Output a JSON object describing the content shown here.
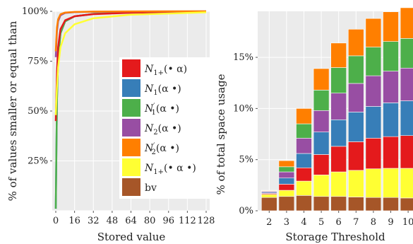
{
  "chart_data": [
    {
      "type": "line",
      "xlabel": "Stored value",
      "ylabel": "% of values smaller or equal than",
      "x_ticks": [
        "0",
        "16",
        "32",
        "48",
        "64",
        "80",
        "96",
        "112",
        "128"
      ],
      "y_ticks": [
        "25%",
        "50%",
        "75%",
        "100%"
      ],
      "xlim": [
        -3,
        131
      ],
      "ylim": [
        0,
        100
      ],
      "grid": true,
      "legend_position": "right",
      "series": [
        {
          "name": "N1+(• α)",
          "color": "#e41a1c",
          "x": [
            0,
            1,
            2,
            4,
            8,
            16,
            32,
            64,
            128
          ],
          "y": [
            45,
            70,
            82,
            91,
            95.5,
            97.5,
            98.6,
            99.3,
            99.8
          ]
        },
        {
          "name": "N1(α •)",
          "color": "#377eb8",
          "x": [
            0,
            1,
            2,
            4,
            8,
            16,
            32,
            64,
            128
          ],
          "y": [
            1,
            55,
            76,
            89,
            95,
            97.5,
            98.7,
            99.4,
            99.8
          ]
        },
        {
          "name": "N'1(α •)",
          "color": "#4daf4a",
          "x": [
            0,
            1,
            2,
            4,
            8,
            16,
            32,
            64,
            128
          ],
          "y": [
            1,
            55,
            76,
            89,
            95,
            97.5,
            98.7,
            99.4,
            99.8
          ]
        },
        {
          "name": "N2(α •)",
          "color": "#984ea3",
          "x": [
            0,
            1,
            2,
            4,
            8,
            16,
            32,
            64,
            128
          ],
          "y": [
            77,
            90,
            95,
            98,
            99.2,
            99.6,
            99.8,
            99.9,
            100
          ]
        },
        {
          "name": "N'2(α •)",
          "color": "#ff7f00",
          "x": [
            0,
            1,
            2,
            4,
            8,
            16,
            32,
            64,
            128
          ],
          "y": [
            80,
            92,
            96,
            98.5,
            99.4,
            99.7,
            99.85,
            99.95,
            100
          ]
        },
        {
          "name": "N1+(• α •)",
          "color": "#ffff33",
          "x": [
            0,
            1,
            2,
            4,
            8,
            16,
            32,
            64,
            128
          ],
          "y": [
            48,
            62,
            72,
            82,
            89,
            93.5,
            96.5,
            98.3,
            99.5
          ]
        },
        {
          "name": "bv",
          "color": "#a65628",
          "x": [],
          "y": []
        }
      ]
    },
    {
      "type": "bar",
      "stacked": true,
      "xlabel": "Storage Threshold",
      "ylabel": "% of total space usage",
      "categories": [
        "2",
        "3",
        "4",
        "5",
        "6",
        "7",
        "8",
        "9",
        "10"
      ],
      "y_ticks": [
        "0%",
        "5%",
        "10%",
        "15%"
      ],
      "ylim": [
        0,
        19.5
      ],
      "grid": true,
      "series": [
        {
          "name": "bv",
          "color": "#a65628",
          "values": [
            1.3,
            1.4,
            1.5,
            1.4,
            1.4,
            1.35,
            1.3,
            1.3,
            1.25
          ]
        },
        {
          "name": "N1+(• α •)",
          "color": "#ffff33",
          "values": [
            0.3,
            0.6,
            1.4,
            2.1,
            2.4,
            2.6,
            2.8,
            2.85,
            2.9
          ]
        },
        {
          "name": "N1+(• α)",
          "color": "#e41a1c",
          "values": [
            0.1,
            0.6,
            1.3,
            2.0,
            2.5,
            2.8,
            3.0,
            3.1,
            3.2
          ]
        },
        {
          "name": "N1(α •)",
          "color": "#377eb8",
          "values": [
            0.1,
            0.6,
            1.4,
            2.2,
            2.6,
            2.9,
            3.1,
            3.3,
            3.4
          ]
        },
        {
          "name": "N2(α •)",
          "color": "#984ea3",
          "values": [
            0.1,
            0.6,
            1.5,
            2.1,
            2.6,
            2.8,
            3.0,
            3.1,
            3.2
          ]
        },
        {
          "name": "N'1(α •)",
          "color": "#4daf4a",
          "values": [
            0.05,
            0.5,
            1.4,
            2.0,
            2.5,
            2.7,
            2.8,
            2.9,
            2.9
          ]
        },
        {
          "name": "N'2(α •)",
          "color": "#ff7f00",
          "values": [
            0.05,
            0.6,
            1.5,
            2.1,
            2.4,
            2.6,
            2.8,
            2.9,
            3.0
          ]
        }
      ]
    }
  ]
}
